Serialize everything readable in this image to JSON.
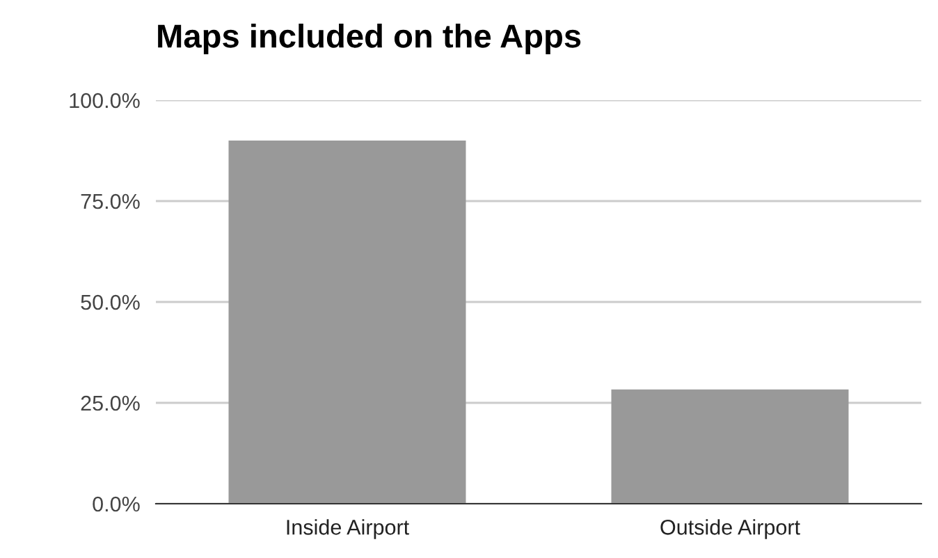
{
  "chart_data": {
    "type": "bar",
    "title": "Maps included on the Apps",
    "categories": [
      "Inside Airport",
      "Outside Airport"
    ],
    "values": [
      90,
      28.3
    ],
    "color": "#999999",
    "ylim": [
      0,
      100
    ],
    "yticks": [
      {
        "value": 0,
        "label": "0.0%"
      },
      {
        "value": 25,
        "label": "25.0%"
      },
      {
        "value": 50,
        "label": "50.0%"
      },
      {
        "value": 75,
        "label": "75.0%"
      },
      {
        "value": 100,
        "label": "100.0%"
      }
    ],
    "grid": "y",
    "legend": false
  }
}
